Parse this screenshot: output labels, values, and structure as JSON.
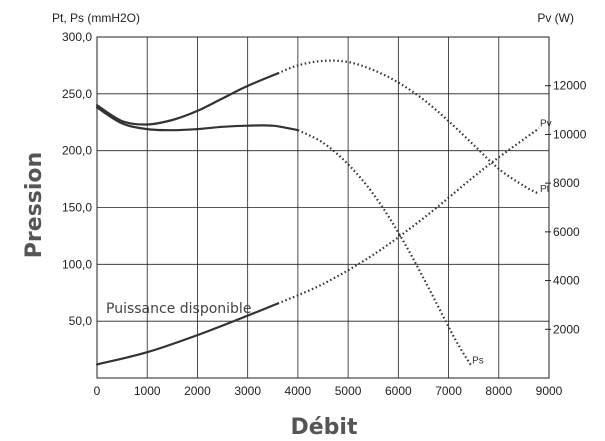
{
  "chart_data": {
    "type": "line",
    "xlabel": "Débit",
    "ylabel": "Pression",
    "left_unit": "Pt, Ps (mmH2O)",
    "right_unit": "Pv (W)",
    "annotation": "Puissance disponible",
    "xlim": [
      0,
      9000
    ],
    "ylim": [
      0,
      300
    ],
    "y2lim": [
      0,
      14000
    ],
    "x_ticks": [
      "0",
      "1000",
      "2000",
      "3000",
      "4000",
      "5000",
      "6000",
      "7000",
      "8000",
      "9000"
    ],
    "x_tick_values": [
      0,
      1000,
      2000,
      3000,
      4000,
      5000,
      6000,
      7000,
      8000,
      9000
    ],
    "y_ticks": [
      "50,0",
      "100,0",
      "150,0",
      "200,0",
      "250,0",
      "300,0"
    ],
    "y_tick_values": [
      50,
      100,
      150,
      200,
      250,
      300
    ],
    "y2_ticks": [
      "2000",
      "4000",
      "6000",
      "8000",
      "10000",
      "12000"
    ],
    "y2_tick_values": [
      2000,
      4000,
      6000,
      8000,
      10000,
      12000
    ],
    "grid": true,
    "series": [
      {
        "name": "Pt",
        "axis": "left",
        "solid_until": 3600,
        "points": [
          [
            0,
            240
          ],
          [
            500,
            226
          ],
          [
            1000,
            223
          ],
          [
            1500,
            227
          ],
          [
            2000,
            235
          ],
          [
            2500,
            246
          ],
          [
            3000,
            257
          ],
          [
            3600,
            268
          ],
          [
            4000,
            275
          ],
          [
            4500,
            279
          ],
          [
            5000,
            278
          ],
          [
            5500,
            271
          ],
          [
            6000,
            260
          ],
          [
            6500,
            245
          ],
          [
            7000,
            226
          ],
          [
            7500,
            205
          ],
          [
            8000,
            184
          ],
          [
            8500,
            169
          ],
          [
            8800,
            162
          ]
        ]
      },
      {
        "name": "Ps",
        "axis": "left",
        "solid_until": 3600,
        "points": [
          [
            0,
            238
          ],
          [
            500,
            224
          ],
          [
            1000,
            219
          ],
          [
            1500,
            218
          ],
          [
            2000,
            219
          ],
          [
            2500,
            221
          ],
          [
            3000,
            222
          ],
          [
            3500,
            222
          ],
          [
            4000,
            218
          ],
          [
            4500,
            207
          ],
          [
            5000,
            188
          ],
          [
            5500,
            162
          ],
          [
            6000,
            128
          ],
          [
            6500,
            88
          ],
          [
            7000,
            45
          ],
          [
            7250,
            25
          ],
          [
            7450,
            11
          ]
        ]
      },
      {
        "name": "Pv",
        "axis": "right",
        "solid_until": 3600,
        "points": [
          [
            0,
            560
          ],
          [
            1000,
            1060
          ],
          [
            2000,
            1760
          ],
          [
            3000,
            2560
          ],
          [
            3600,
            3060
          ],
          [
            4500,
            3860
          ],
          [
            5500,
            5060
          ],
          [
            6500,
            6560
          ],
          [
            7500,
            8260
          ],
          [
            8000,
            9060
          ],
          [
            8800,
            10250
          ]
        ]
      }
    ]
  }
}
